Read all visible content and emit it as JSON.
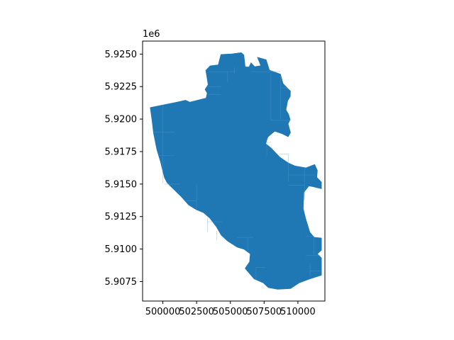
{
  "chart_data": {
    "type": "map",
    "title": "",
    "xlabel": "",
    "ylabel": "",
    "y_offset_label": "1e6",
    "xlim": [
      498500,
      512000
    ],
    "ylim": [
      5906000,
      5926000
    ],
    "x_ticks": [
      {
        "value": 500000,
        "label": "500000"
      },
      {
        "value": 502500,
        "label": "502500"
      },
      {
        "value": 505000,
        "label": "505000"
      },
      {
        "value": 507500,
        "label": "507500"
      },
      {
        "value": 510000,
        "label": "510000"
      }
    ],
    "y_ticks": [
      {
        "value": 5907500,
        "label": "5.9075"
      },
      {
        "value": 5910000,
        "label": "5.9100"
      },
      {
        "value": 5912500,
        "label": "5.9125"
      },
      {
        "value": 5915000,
        "label": "5.9150"
      },
      {
        "value": 5917500,
        "label": "5.9175"
      },
      {
        "value": 5920000,
        "label": "5.9200"
      },
      {
        "value": 5922500,
        "label": "5.9225"
      },
      {
        "value": 5925000,
        "label": "5.9250"
      }
    ],
    "fill_color": "#1f77b4",
    "edge_color": "#5d9fd0",
    "grid": false,
    "legend": "none",
    "region_outline": [
      [
        499060,
        5920890
      ],
      [
        500950,
        5921280
      ],
      [
        501680,
        5921450
      ],
      [
        502000,
        5921300
      ],
      [
        503200,
        5921620
      ],
      [
        503280,
        5922000
      ],
      [
        503120,
        5922280
      ],
      [
        503350,
        5922650
      ],
      [
        503180,
        5923750
      ],
      [
        503500,
        5924100
      ],
      [
        504100,
        5924170
      ],
      [
        504300,
        5924970
      ],
      [
        505100,
        5925020
      ],
      [
        505800,
        5925110
      ],
      [
        506000,
        5924940
      ],
      [
        506100,
        5924020
      ],
      [
        506380,
        5924010
      ],
      [
        506530,
        5924340
      ],
      [
        506800,
        5924030
      ],
      [
        507250,
        5924110
      ],
      [
        507000,
        5924760
      ],
      [
        507650,
        5924570
      ],
      [
        507900,
        5923760
      ],
      [
        508710,
        5923460
      ],
      [
        508900,
        5922740
      ],
      [
        509230,
        5922370
      ],
      [
        509450,
        5922160
      ],
      [
        509440,
        5921750
      ],
      [
        509250,
        5921400
      ],
      [
        509120,
        5920710
      ],
      [
        509310,
        5920370
      ],
      [
        509430,
        5919960
      ],
      [
        509280,
        5919630
      ],
      [
        509460,
        5918960
      ],
      [
        509280,
        5918640
      ],
      [
        508820,
        5918880
      ],
      [
        508280,
        5919060
      ],
      [
        507780,
        5918620
      ],
      [
        507620,
        5918110
      ],
      [
        508010,
        5917790
      ],
      [
        508660,
        5917080
      ],
      [
        509280,
        5916630
      ],
      [
        509780,
        5916400
      ],
      [
        510600,
        5916250
      ],
      [
        511250,
        5916510
      ],
      [
        511450,
        5916040
      ],
      [
        511400,
        5915520
      ],
      [
        511750,
        5915150
      ],
      [
        511750,
        5914640
      ],
      [
        511190,
        5914780
      ],
      [
        510820,
        5914860
      ],
      [
        510450,
        5914370
      ],
      [
        510400,
        5913110
      ],
      [
        510580,
        5912340
      ],
      [
        510890,
        5911290
      ],
      [
        511200,
        5910910
      ],
      [
        511750,
        5910850
      ],
      [
        511750,
        5909910
      ],
      [
        511450,
        5909630
      ],
      [
        511750,
        5909320
      ],
      [
        511750,
        5907990
      ],
      [
        510820,
        5907680
      ],
      [
        510110,
        5907400
      ],
      [
        509460,
        5906960
      ],
      [
        508500,
        5906900
      ],
      [
        507810,
        5907030
      ],
      [
        507430,
        5907400
      ],
      [
        506750,
        5907700
      ],
      [
        506090,
        5908510
      ],
      [
        506420,
        5909020
      ],
      [
        506470,
        5909630
      ],
      [
        506000,
        5909990
      ],
      [
        505500,
        5910140
      ],
      [
        504790,
        5910620
      ],
      [
        504320,
        5911070
      ],
      [
        503950,
        5911730
      ],
      [
        503490,
        5912360
      ],
      [
        503020,
        5912790
      ],
      [
        502460,
        5913040
      ],
      [
        501910,
        5913390
      ],
      [
        501380,
        5914010
      ],
      [
        500930,
        5914470
      ],
      [
        500590,
        5914810
      ],
      [
        500310,
        5915100
      ],
      [
        500120,
        5915490
      ],
      [
        500010,
        5915930
      ],
      [
        499830,
        5916690
      ],
      [
        499550,
        5917660
      ],
      [
        499310,
        5918910
      ],
      [
        499190,
        5919960
      ],
      [
        499060,
        5920890
      ]
    ],
    "internal_boundaries": [
      [
        [
          500000,
          5921100
        ],
        [
          500000,
          5915100
        ]
      ],
      [
        [
          499300,
          5919000
        ],
        [
          500900,
          5919000
        ]
      ],
      [
        [
          499700,
          5917200
        ],
        [
          500900,
          5917200
        ]
      ],
      [
        [
          500100,
          5915000
        ],
        [
          501300,
          5915000
        ]
      ],
      [
        [
          502500,
          5915000
        ],
        [
          502500,
          5913100
        ]
      ],
      [
        [
          501600,
          5913700
        ],
        [
          502500,
          5913700
        ]
      ],
      [
        [
          503300,
          5912400
        ],
        [
          503300,
          5911300
        ]
      ],
      [
        [
          503300,
          5912100
        ],
        [
          504400,
          5912100
        ]
      ],
      [
        [
          504000,
          5911400
        ],
        [
          504000,
          5910700
        ]
      ],
      [
        [
          505500,
          5910900
        ],
        [
          506700,
          5910900
        ]
      ],
      [
        [
          506300,
          5910900
        ],
        [
          506300,
          5909900
        ]
      ],
      [
        [
          503400,
          5923650
        ],
        [
          505300,
          5923650
        ]
      ],
      [
        [
          504800,
          5923650
        ],
        [
          504800,
          5922800
        ]
      ],
      [
        [
          505300,
          5924000
        ],
        [
          505300,
          5923500
        ]
      ],
      [
        [
          506500,
          5923650
        ],
        [
          508700,
          5923650
        ]
      ],
      [
        [
          508000,
          5923500
        ],
        [
          508000,
          5919900
        ]
      ],
      [
        [
          508700,
          5922400
        ],
        [
          509200,
          5922400
        ]
      ],
      [
        [
          508700,
          5923300
        ],
        [
          508700,
          5920000
        ]
      ],
      [
        [
          508000,
          5919900
        ],
        [
          509400,
          5919900
        ]
      ],
      [
        [
          507700,
          5918500
        ],
        [
          507700,
          5917200
        ]
      ],
      [
        [
          507700,
          5918200
        ],
        [
          508000,
          5918200
        ]
      ],
      [
        [
          503300,
          5922500
        ],
        [
          504300,
          5922500
        ]
      ],
      [
        [
          503300,
          5921900
        ],
        [
          504300,
          5921900
        ]
      ],
      [
        [
          508600,
          5917300
        ],
        [
          509300,
          5917300
        ]
      ],
      [
        [
          509300,
          5917300
        ],
        [
          509300,
          5915200
        ]
      ],
      [
        [
          509300,
          5915700
        ],
        [
          511300,
          5915700
        ]
      ],
      [
        [
          509300,
          5914900
        ],
        [
          510500,
          5914900
        ]
      ],
      [
        [
          510500,
          5916300
        ],
        [
          510500,
          5913800
        ]
      ],
      [
        [
          510600,
          5911000
        ],
        [
          511200,
          5911000
        ]
      ],
      [
        [
          511200,
          5911000
        ],
        [
          511200,
          5909600
        ]
      ],
      [
        [
          510600,
          5909500
        ],
        [
          511700,
          5909500
        ]
      ],
      [
        [
          510900,
          5908900
        ],
        [
          510900,
          5907900
        ]
      ],
      [
        [
          510900,
          5908300
        ],
        [
          511700,
          5908300
        ]
      ],
      [
        [
          506900,
          5908600
        ],
        [
          506900,
          5907600
        ]
      ],
      [
        [
          506900,
          5908600
        ],
        [
          507600,
          5908600
        ]
      ]
    ]
  }
}
